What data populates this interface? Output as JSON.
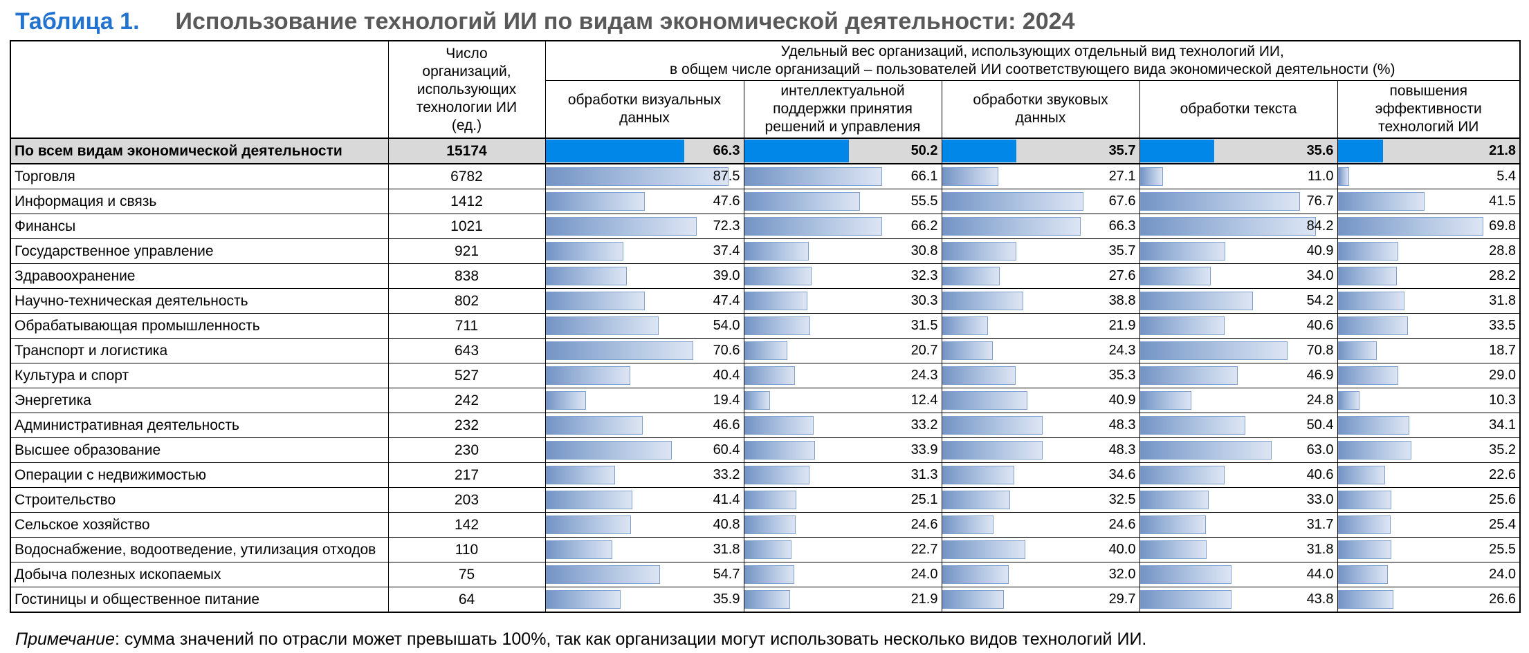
{
  "title": {
    "label": "Таблица 1.",
    "text": "Использование технологий ИИ по видам экономической деятельности: 2024"
  },
  "table": {
    "count_header": "Число организаций, использующих технологии ИИ (ед.)",
    "share_header": {
      "line1": "Удельный вес организаций, использующих отдельный вид технологий ИИ,",
      "line2": "в общем числе организаций – пользователей ИИ соответствующего вида экономической деятельности (%)"
    },
    "tech_columns": [
      "обработки визуальных данных",
      "интеллектуальной поддержки принятия решений и управления",
      "обработки звуковых данных",
      "обработки текста",
      "повышения эффективности технологий ИИ"
    ]
  },
  "chart_data": {
    "type": "table",
    "title": "Использование технологий ИИ по видам экономической деятельности: 2024",
    "value_unit": "%",
    "count_unit": "ед.",
    "columns": [
      "Число организаций, использующих технологии ИИ (ед.)",
      "обработки визуальных данных",
      "интеллектуальной поддержки принятия решений и управления",
      "обработки звуковых данных",
      "обработки текста",
      "повышения эффективности технологий ИИ"
    ],
    "rows": [
      {
        "label": "По всем видам экономической деятельности",
        "count": 15174,
        "values": [
          66.3,
          50.2,
          35.7,
          35.6,
          21.8
        ]
      },
      {
        "label": "Торговля",
        "count": 6782,
        "values": [
          87.5,
          66.1,
          27.1,
          11.0,
          5.4
        ]
      },
      {
        "label": "Информация и связь",
        "count": 1412,
        "values": [
          47.6,
          55.5,
          67.6,
          76.7,
          41.5
        ]
      },
      {
        "label": "Финансы",
        "count": 1021,
        "values": [
          72.3,
          66.2,
          66.3,
          84.2,
          69.8
        ]
      },
      {
        "label": "Государственное управление",
        "count": 921,
        "values": [
          37.4,
          30.8,
          35.7,
          40.9,
          28.8
        ]
      },
      {
        "label": "Здравоохранение",
        "count": 838,
        "values": [
          39.0,
          32.3,
          27.6,
          34.0,
          28.2
        ]
      },
      {
        "label": "Научно-техническая деятельность",
        "count": 802,
        "values": [
          47.4,
          30.3,
          38.8,
          54.2,
          31.8
        ]
      },
      {
        "label": "Обрабатывающая промышленность",
        "count": 711,
        "values": [
          54.0,
          31.5,
          21.9,
          40.6,
          33.5
        ]
      },
      {
        "label": "Транспорт и логистика",
        "count": 643,
        "values": [
          70.6,
          20.7,
          24.3,
          70.8,
          18.7
        ]
      },
      {
        "label": "Культура и спорт",
        "count": 527,
        "values": [
          40.4,
          24.3,
          35.3,
          46.9,
          29.0
        ]
      },
      {
        "label": "Энергетика",
        "count": 242,
        "values": [
          19.4,
          12.4,
          40.9,
          24.8,
          10.3
        ]
      },
      {
        "label": "Административная деятельность",
        "count": 232,
        "values": [
          46.6,
          33.2,
          48.3,
          50.4,
          34.1
        ]
      },
      {
        "label": "Высшее образование",
        "count": 230,
        "values": [
          60.4,
          33.9,
          48.3,
          63.0,
          35.2
        ]
      },
      {
        "label": "Операции с недвижимостью",
        "count": 217,
        "values": [
          33.2,
          31.3,
          34.6,
          40.6,
          22.6
        ]
      },
      {
        "label": "Строительство",
        "count": 203,
        "values": [
          41.4,
          25.1,
          32.5,
          33.0,
          25.6
        ]
      },
      {
        "label": "Сельское хозяйство",
        "count": 142,
        "values": [
          40.8,
          24.6,
          24.6,
          31.7,
          25.4
        ]
      },
      {
        "label": "Водоснабжение, водоотведение, утилизация отходов",
        "count": 110,
        "values": [
          31.8,
          22.7,
          40.0,
          31.8,
          25.5
        ]
      },
      {
        "label": "Добыча полезных ископаемых",
        "count": 75,
        "values": [
          54.7,
          24.0,
          32.0,
          44.0,
          24.0
        ]
      },
      {
        "label": "Гостиницы и общественное питание",
        "count": 64,
        "values": [
          35.9,
          21.9,
          29.7,
          43.8,
          26.6
        ]
      }
    ]
  },
  "note": {
    "label": "Примечание",
    "text": ": сумма значений по отрасли может превышать 100%, так как организации могут использовать несколько видов технологий ИИ."
  },
  "colors": {
    "title_blue": "#2273D0",
    "title_gray": "#595959",
    "total_bar_blue": "#0087E8",
    "bar_gradient_left": "#7494C5",
    "bar_gradient_right": "#DDE5F3",
    "bar_border": "#7FA0CE",
    "total_row_bg": "#D9D9D9"
  }
}
